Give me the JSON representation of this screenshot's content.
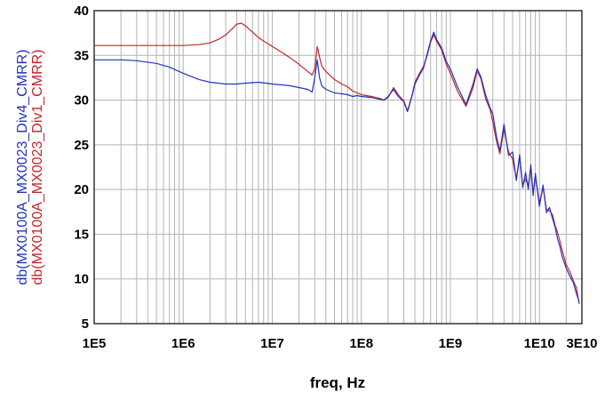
{
  "chart_data": {
    "type": "line",
    "xscale": "log",
    "xlabel": "freq, Hz",
    "ylim": [
      5,
      40
    ],
    "xlim": [
      100000,
      30000000000
    ],
    "grid": true,
    "y_ticks": [
      "5",
      "10",
      "15",
      "20",
      "25",
      "30",
      "35",
      "40"
    ],
    "x_ticks": [
      "1E5",
      "1E6",
      "1E7",
      "1E8",
      "1E9",
      "1E10",
      "3E10"
    ],
    "series": [
      {
        "name": "db(MX0100A_MX0023_Div1_CMRR)",
        "color": "#c0262b",
        "x": [
          100000,
          200000,
          500000,
          1000000,
          1500000,
          2000000,
          2500000,
          3000000,
          3500000,
          4000000,
          4500000,
          5000000,
          6000000,
          7000000,
          8000000,
          10000000,
          13000000,
          16000000,
          20000000,
          25000000,
          28000000,
          30000000,
          32000000,
          34000000,
          36000000,
          40000000,
          50000000,
          60000000,
          70000000,
          80000000,
          90000000,
          100000000,
          130000000,
          160000000,
          180000000,
          200000000,
          230000000,
          260000000,
          300000000,
          330000000,
          370000000,
          400000000,
          450000000,
          500000000,
          550000000,
          600000000,
          650000000,
          700000000,
          800000000,
          900000000,
          1000000000,
          1200000000,
          1500000000,
          1800000000,
          2000000000,
          2200000000,
          2500000000,
          2800000000,
          3000000000,
          3300000000,
          3600000000,
          4000000000,
          4500000000,
          5000000000,
          5500000000,
          6000000000,
          6500000000,
          7000000000,
          7500000000,
          8000000000,
          8500000000,
          9000000000,
          10000000000,
          11000000000,
          12000000000,
          13000000000,
          14000000000,
          15000000000,
          16000000000,
          17000000000,
          18000000000,
          20000000000,
          22000000000,
          24000000000,
          26000000000,
          28000000000
        ],
        "values": [
          36.1,
          36.1,
          36.1,
          36.1,
          36.2,
          36.4,
          36.8,
          37.3,
          37.9,
          38.5,
          38.6,
          38.3,
          37.6,
          37.0,
          36.6,
          36.0,
          35.3,
          34.7,
          34.0,
          33.2,
          32.8,
          33.5,
          36.0,
          34.8,
          33.8,
          33.2,
          32.3,
          31.8,
          31.5,
          31.0,
          30.8,
          30.6,
          30.4,
          30.2,
          30.0,
          30.3,
          31.4,
          30.6,
          29.9,
          28.8,
          30.5,
          32.0,
          33.0,
          33.8,
          35.0,
          36.5,
          37.3,
          36.6,
          35.6,
          34.0,
          33.0,
          31.0,
          29.3,
          31.4,
          33.3,
          32.4,
          30.1,
          28.9,
          27.5,
          25.4,
          24.0,
          26.8,
          24.2,
          23.4,
          21.2,
          23.6,
          20.5,
          21.2,
          20.4,
          22.5,
          19.6,
          21.5,
          18.5,
          20.2,
          17.8,
          17.6,
          17.2,
          16.0,
          15.2,
          14.2,
          13.2,
          11.6,
          10.8,
          9.8,
          9.0,
          7.2
        ]
      },
      {
        "name": "db(MX0100A_MX0023_Div4_CMRR)",
        "color": "#2233bb",
        "x": [
          100000,
          200000,
          300000,
          500000,
          700000,
          1000000,
          1500000,
          2000000,
          3000000,
          4000000,
          5000000,
          7000000,
          10000000,
          13000000,
          16000000,
          20000000,
          25000000,
          28000000,
          30000000,
          32000000,
          34000000,
          36000000,
          40000000,
          50000000,
          60000000,
          70000000,
          80000000,
          90000000,
          100000000,
          130000000,
          160000000,
          180000000,
          200000000,
          230000000,
          260000000,
          300000000,
          330000000,
          370000000,
          400000000,
          450000000,
          500000000,
          550000000,
          600000000,
          650000000,
          700000000,
          800000000,
          900000000,
          1000000000,
          1200000000,
          1500000000,
          1800000000,
          2000000000,
          2200000000,
          2500000000,
          2800000000,
          3000000000,
          3300000000,
          3600000000,
          4000000000,
          4500000000,
          5000000000,
          5500000000,
          6000000000,
          6500000000,
          7000000000,
          7500000000,
          8000000000,
          8500000000,
          9000000000,
          10000000000,
          11000000000,
          12000000000,
          13000000000,
          14000000000,
          15000000000,
          16000000000,
          17000000000,
          18000000000,
          20000000000,
          22000000000,
          24000000000,
          26000000000,
          28000000000
        ],
        "values": [
          34.5,
          34.5,
          34.4,
          34.1,
          33.7,
          33.0,
          32.3,
          32.0,
          31.8,
          31.8,
          31.9,
          32.0,
          31.8,
          31.7,
          31.6,
          31.4,
          31.2,
          30.9,
          32.5,
          34.5,
          32.5,
          31.6,
          31.2,
          30.8,
          30.7,
          30.6,
          30.4,
          30.5,
          30.4,
          30.3,
          30.1,
          30.0,
          30.4,
          31.2,
          30.4,
          29.8,
          28.7,
          30.4,
          31.8,
          32.8,
          33.6,
          35.2,
          36.6,
          37.6,
          36.8,
          35.8,
          34.3,
          33.5,
          31.5,
          29.5,
          31.8,
          33.5,
          32.6,
          30.5,
          29.1,
          28.4,
          25.9,
          24.3,
          27.3,
          23.8,
          24.2,
          21.0,
          23.9,
          20.2,
          21.9,
          20.0,
          22.8,
          19.3,
          21.8,
          18.1,
          20.5,
          17.4,
          18.0,
          16.8,
          15.8,
          14.5,
          13.6,
          12.5,
          11.2,
          10.3,
          9.6,
          8.4,
          7.4
        ]
      }
    ]
  }
}
